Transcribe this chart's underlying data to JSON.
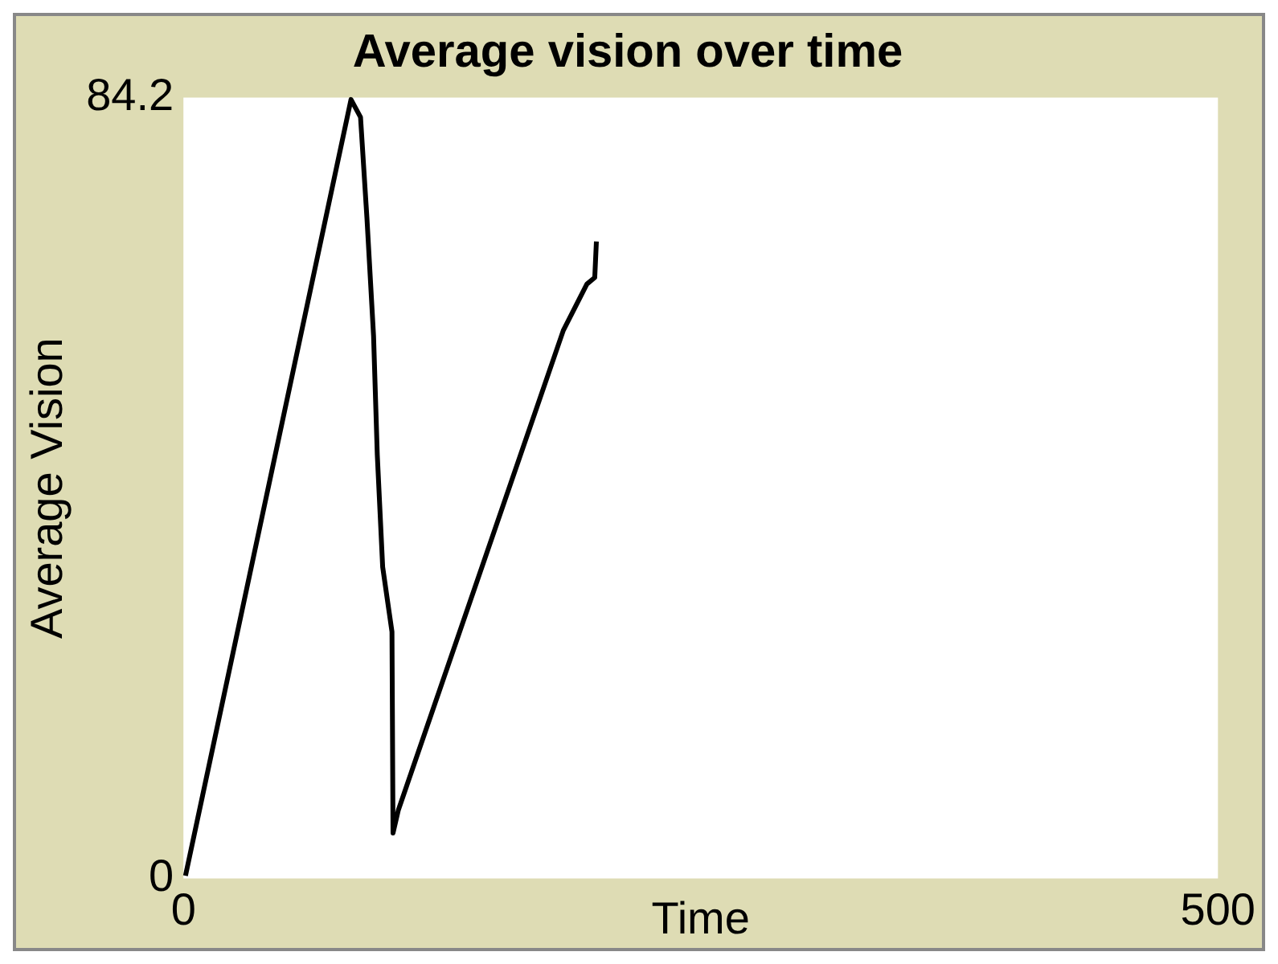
{
  "chart_data": {
    "type": "line",
    "title": "Average vision over time",
    "xlabel": "Time",
    "ylabel": "Average Vision",
    "x": [
      1,
      81,
      85.6,
      88.7,
      91.9,
      93.7,
      96.3,
      100.8,
      101.3,
      103.9,
      183.6,
      195,
      198.8,
      199.6
    ],
    "series": [
      {
        "color": "#000000",
        "values": [
          0.3,
          84,
          82.1,
          71.2,
          58.5,
          45.7,
          33.6,
          26.6,
          4.9,
          7.4,
          59.1,
          64.1,
          64.8,
          68.7
        ]
      }
    ],
    "xlim": [
      0,
      500
    ],
    "xticks": [
      0,
      500
    ],
    "ylim": [
      0,
      84.2
    ],
    "yticks": [
      0,
      84.2
    ],
    "grid": false,
    "legend": false,
    "marker": "none",
    "line_style": "solid"
  }
}
